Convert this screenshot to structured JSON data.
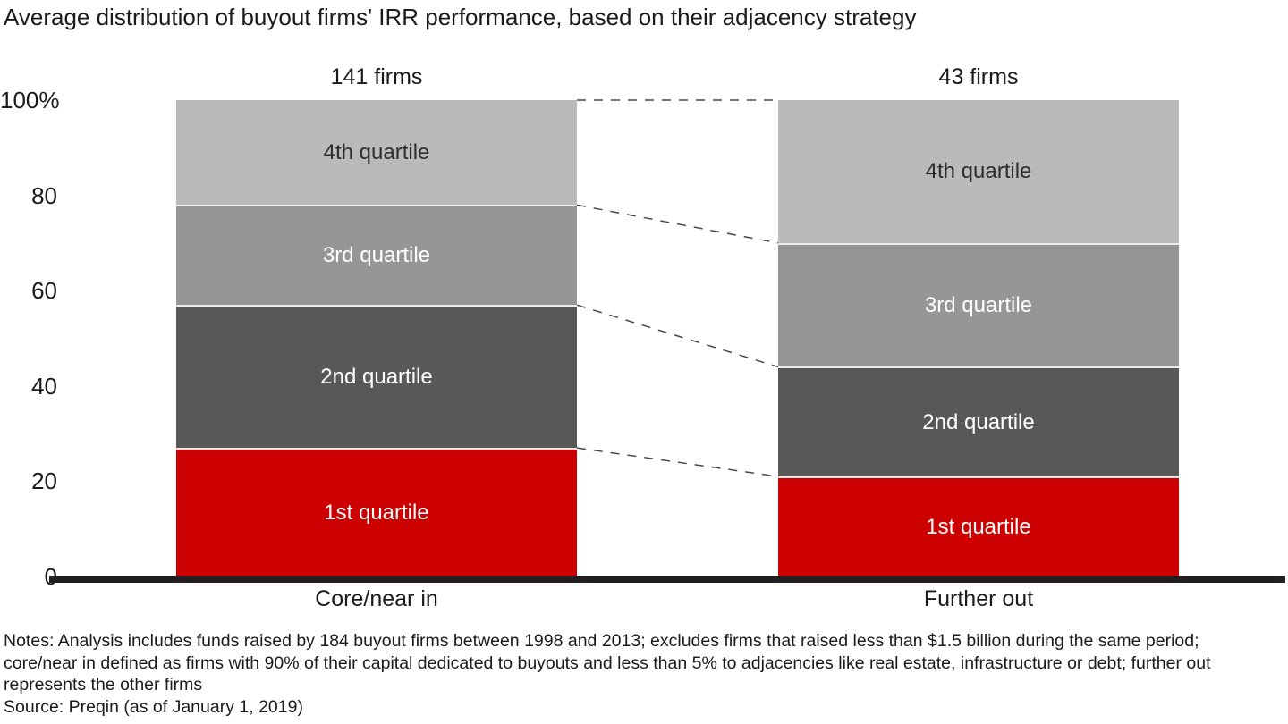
{
  "chart_data": {
    "type": "bar",
    "subtype": "stacked-100-percent-column",
    "title": "Average distribution of buyout firms' IRR performance, based on their adjacency strategy",
    "categories": [
      "Core/near in",
      "Further out"
    ],
    "category_counts": [
      "141 firms",
      "43 firms"
    ],
    "stack_order": "bottom-to-top",
    "series": [
      {
        "name": "1st quartile",
        "values": [
          27,
          21
        ],
        "color": "#cc0000",
        "text_color": "#ffffff"
      },
      {
        "name": "2nd quartile",
        "values": [
          30,
          23
        ],
        "color": "#595859",
        "text_color": "#ffffff"
      },
      {
        "name": "3rd quartile",
        "values": [
          21,
          26
        ],
        "color": "#979697",
        "text_color": "#ffffff"
      },
      {
        "name": "4th quartile",
        "values": [
          22,
          30
        ],
        "color": "#bbbabb",
        "text_color": "#2e2d2e"
      }
    ],
    "yticks": [
      {
        "label": "100%",
        "value": 100
      },
      {
        "label": "80",
        "value": 80
      },
      {
        "label": "60",
        "value": 60
      },
      {
        "label": "40",
        "value": 40
      },
      {
        "label": "20",
        "value": 20
      },
      {
        "label": "0",
        "value": 0
      }
    ],
    "ylim": [
      0,
      100
    ],
    "grid": false,
    "legend": "labels-inside-segments",
    "connector_style": {
      "type": "dashed",
      "color": "#4a4a4a"
    },
    "axis_line_color": "#231f20"
  },
  "notes": {
    "lines": [
      "Notes: Analysis includes funds raised by 184 buyout firms between 1998 and 2013; excludes firms that raised less than $1.5 billion during the same period;",
      "core/near in defined as firms with 90% of their capital dedicated to buyouts and less than 5% to adjacencies like real estate, infrastructure or debt; further out",
      "represents the other firms"
    ],
    "source": "Source: Preqin (as of January 1, 2019)"
  }
}
